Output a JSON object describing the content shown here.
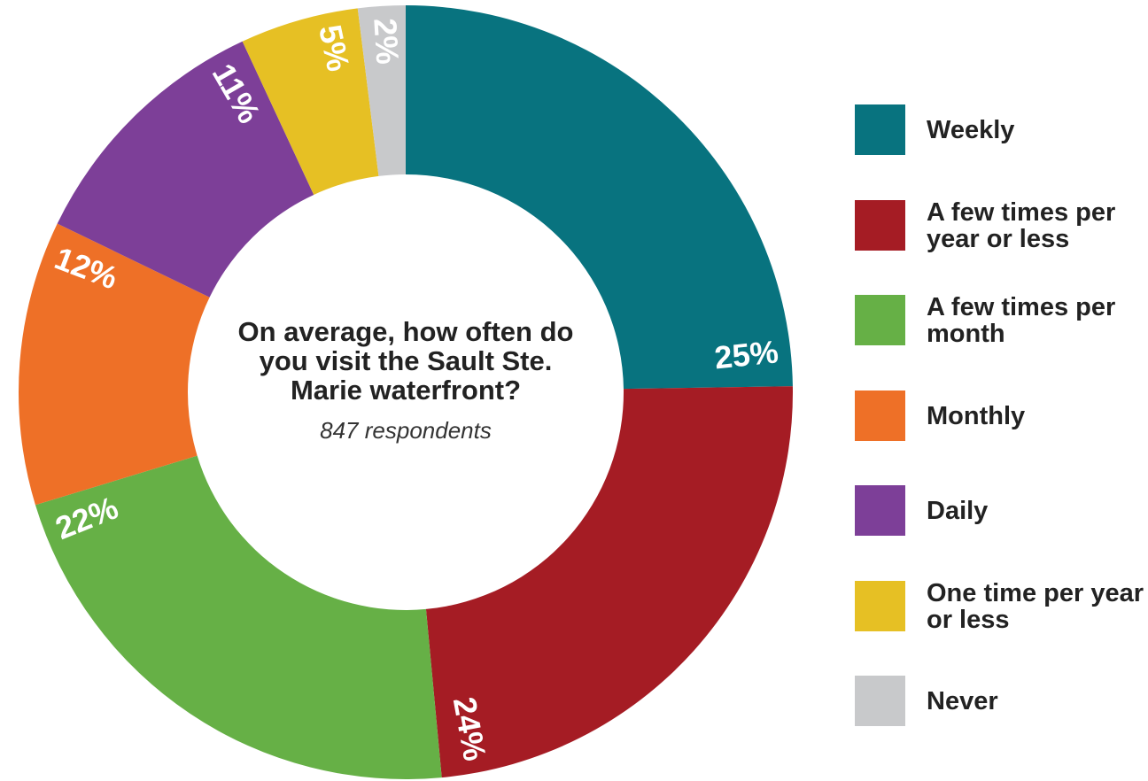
{
  "chart_data": {
    "type": "donut",
    "title": "On average, how often do you visit the Sault Ste. Marie waterfront?",
    "subtitle": "847 respondents",
    "categories": [
      "Weekly",
      "A few times per year or less",
      "A few times per month",
      "Monthly",
      "Daily",
      "One time per year or less",
      "Never"
    ],
    "values": [
      25,
      24,
      22,
      12,
      11,
      5,
      2
    ],
    "value_labels": [
      "25%",
      "24%",
      "22%",
      "12%",
      "11%",
      "5%",
      "2%"
    ],
    "colors": [
      "#08737f",
      "#a51c24",
      "#66b046",
      "#ee7027",
      "#7d3f98",
      "#e6c024",
      "#c8c9cb"
    ],
    "legend": "right"
  }
}
